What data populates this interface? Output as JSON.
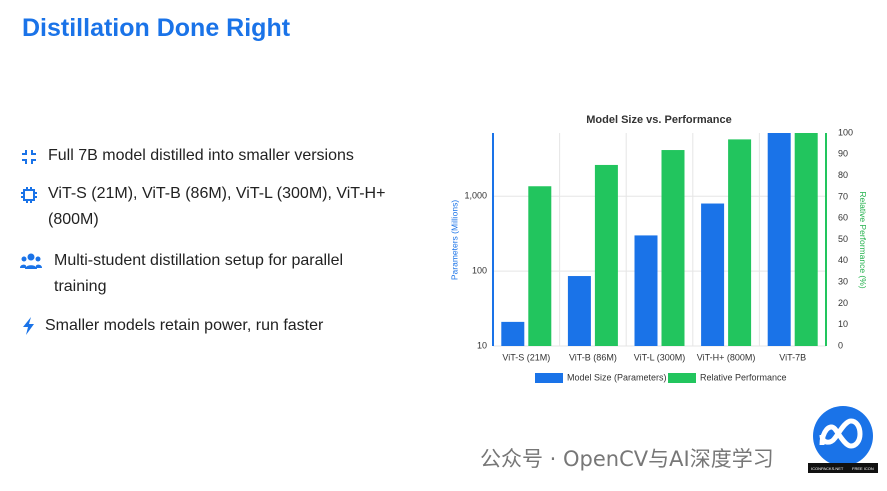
{
  "slide": {
    "title": "Distillation Done Right",
    "bullets": [
      "Full 7B model distilled into smaller versions",
      "ViT-S (21M), ViT-B (86M), ViT-L (300M), ViT-H+ (800M)",
      "Multi-student distillation setup for parallel training",
      "Smaller models retain power, run faster"
    ],
    "watermark": "公众号 · OpenCV与AI深度学习",
    "logo_texts": [
      "ICONPACKS.NET",
      "FREE ICON"
    ]
  },
  "chart_data": {
    "type": "bar",
    "title": "Model Size vs. Performance",
    "ylabel": "Parameters (Millions)",
    "y2label": "Relative Performance (%)",
    "categories": [
      "ViT-S (21M)",
      "ViT-B (86M)",
      "ViT-L (300M)",
      "ViT-H+ (800M)",
      "ViT-7B"
    ],
    "series": [
      {
        "name": "Model Size (Parameters)",
        "color": "#1a73e8",
        "values": [
          21,
          86,
          300,
          800,
          7000
        ]
      },
      {
        "name": "Relative Performance",
        "color": "#22c55e",
        "values": [
          75,
          85,
          92,
          97,
          100
        ],
        "axis": "y2"
      }
    ],
    "yscale": "log",
    "ylim": [
      10,
      7000
    ],
    "yticks": [
      10,
      100,
      {
        "value": 1000,
        "label": "1,000"
      }
    ],
    "y2lim": [
      0,
      100
    ],
    "y2ticks": [
      0,
      10,
      20,
      30,
      40,
      50,
      60,
      70,
      80,
      90,
      100
    ],
    "grid": true,
    "legend": "bottom"
  }
}
